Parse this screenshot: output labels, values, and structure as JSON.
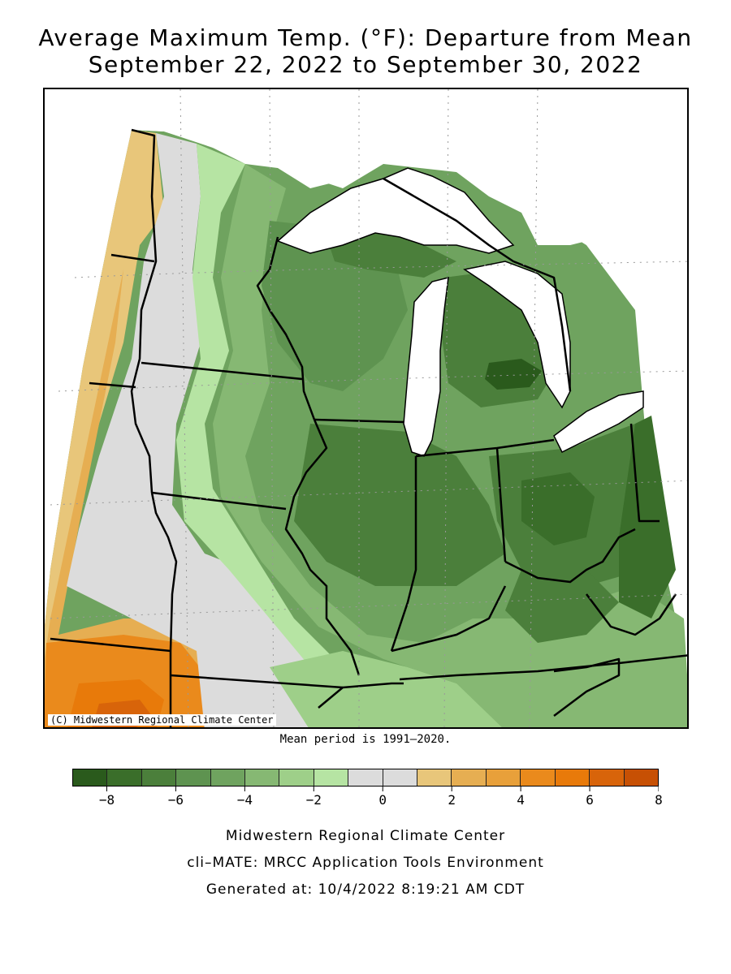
{
  "title": {
    "line1": "Average Maximum Temp. (°F): Departure from Mean",
    "line2": "September 22, 2022 to September 30, 2022"
  },
  "map": {
    "copyright": "(C) Midwestern Regional Climate Center",
    "mean_note": "Mean period is 1991–2020."
  },
  "legend": {
    "min": -9,
    "max": 8,
    "colors": [
      "#2a5a1c",
      "#3a6e2a",
      "#4b7f3b",
      "#5e9350",
      "#6fa35f",
      "#86b873",
      "#9ecf89",
      "#b6e4a3",
      "#dcdcdc",
      "#dcdcdc",
      "#e8c67a",
      "#e6ae52",
      "#e8a03a",
      "#ea8a1c",
      "#e87a0a",
      "#d8640a",
      "#c75004"
    ],
    "ticks": [
      {
        "value": -8,
        "label": "−8"
      },
      {
        "value": -6,
        "label": "−6"
      },
      {
        "value": -4,
        "label": "−4"
      },
      {
        "value": -2,
        "label": "−2"
      },
      {
        "value": 0,
        "label": "0"
      },
      {
        "value": 2,
        "label": "2"
      },
      {
        "value": 4,
        "label": "4"
      },
      {
        "value": 6,
        "label": "6"
      },
      {
        "value": 8,
        "label": "8"
      }
    ]
  },
  "footer": {
    "line1": "Midwestern Regional Climate Center",
    "line2": "cli–MATE: MRCC Application Tools Environment",
    "line3": "Generated at: 10/4/2022 8:19:21 AM CDT"
  }
}
